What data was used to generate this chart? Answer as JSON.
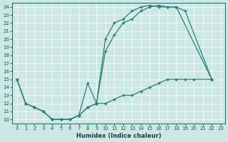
{
  "title": "",
  "xlabel": "Humidex (Indice chaleur)",
  "ylabel": "",
  "bg_color": "#cce8e4",
  "line_color": "#2d7d78",
  "xlim": [
    -0.5,
    23.5
  ],
  "ylim": [
    9.5,
    24.5
  ],
  "xticks": [
    0,
    1,
    2,
    3,
    4,
    5,
    6,
    7,
    8,
    9,
    10,
    11,
    12,
    13,
    14,
    15,
    16,
    17,
    18,
    19,
    20,
    21,
    22,
    23
  ],
  "yticks": [
    10,
    11,
    12,
    13,
    14,
    15,
    16,
    17,
    18,
    19,
    20,
    21,
    22,
    23,
    24
  ],
  "line1_x": [
    0,
    1,
    2,
    3,
    4,
    5,
    6,
    7,
    8,
    9,
    10,
    11,
    12,
    13,
    14,
    15,
    16,
    17,
    18,
    22
  ],
  "line1_y": [
    15,
    12,
    11.5,
    11,
    10,
    10,
    10,
    10.5,
    11.5,
    12,
    18.5,
    20.5,
    22,
    22.5,
    23.5,
    24,
    24.2,
    24,
    24,
    15
  ],
  "line2_x": [
    0,
    1,
    2,
    3,
    4,
    5,
    6,
    7,
    8,
    9,
    10,
    11,
    12,
    13,
    14,
    15,
    16,
    17,
    18,
    19,
    22
  ],
  "line2_y": [
    15,
    12,
    11.5,
    11,
    10,
    10,
    10,
    10.5,
    14.5,
    12,
    20,
    22,
    22.5,
    23.5,
    24,
    24.2,
    24,
    24,
    24,
    23.5,
    15
  ],
  "line3_x": [
    0,
    1,
    2,
    3,
    4,
    5,
    6,
    7,
    8,
    9,
    10,
    11,
    12,
    13,
    14,
    15,
    16,
    17,
    18,
    19,
    20,
    22
  ],
  "line3_y": [
    15,
    12,
    11.5,
    11,
    10,
    10,
    10,
    10.5,
    11.5,
    12,
    12,
    12.5,
    13,
    13,
    13.5,
    14,
    14.5,
    15,
    15,
    15,
    15,
    15
  ]
}
